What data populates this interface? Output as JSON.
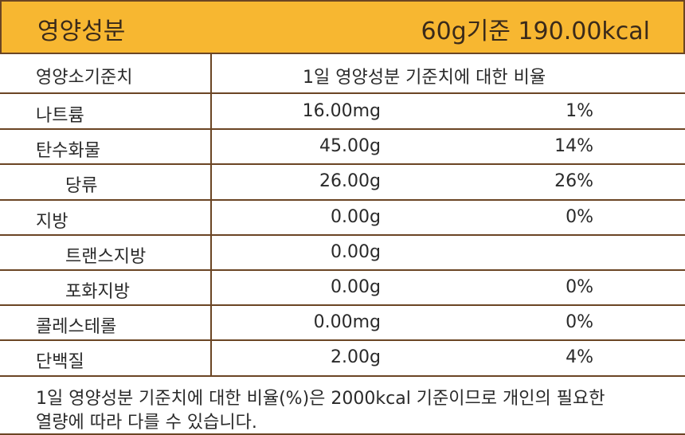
{
  "header": {
    "title": "영양성분",
    "basis": "60g기준 190.00kcal"
  },
  "table": {
    "columns": [
      "영양소기준치",
      "1일 영양성분 기준치에 대한 비율"
    ],
    "rows": [
      {
        "name": "나트륨",
        "amount": "16.00mg",
        "percent": "1%"
      },
      {
        "name": "탄수화물",
        "amount": "45.00g",
        "percent": "14%"
      },
      {
        "name": "당류",
        "amount": "26.00g",
        "percent": "26%"
      },
      {
        "name": "지방",
        "amount": "0.00g",
        "percent": "0%"
      },
      {
        "name": "트랜스지방",
        "amount": "0.00g"
      },
      {
        "name": "포화지방",
        "amount": "0.00g",
        "percent": "0%"
      },
      {
        "name": "콜레스테롤",
        "amount": "0.00mg",
        "percent": "0%"
      },
      {
        "name": "단백질",
        "amount": "2.00g",
        "percent": "4%"
      }
    ]
  },
  "footnote": [
    "1일 영양성분 기준치에 대한 비율(%)은 2000kcal 기준이므로 개인의 필요한",
    "열량에 따라 다를 수 있습니다."
  ]
}
